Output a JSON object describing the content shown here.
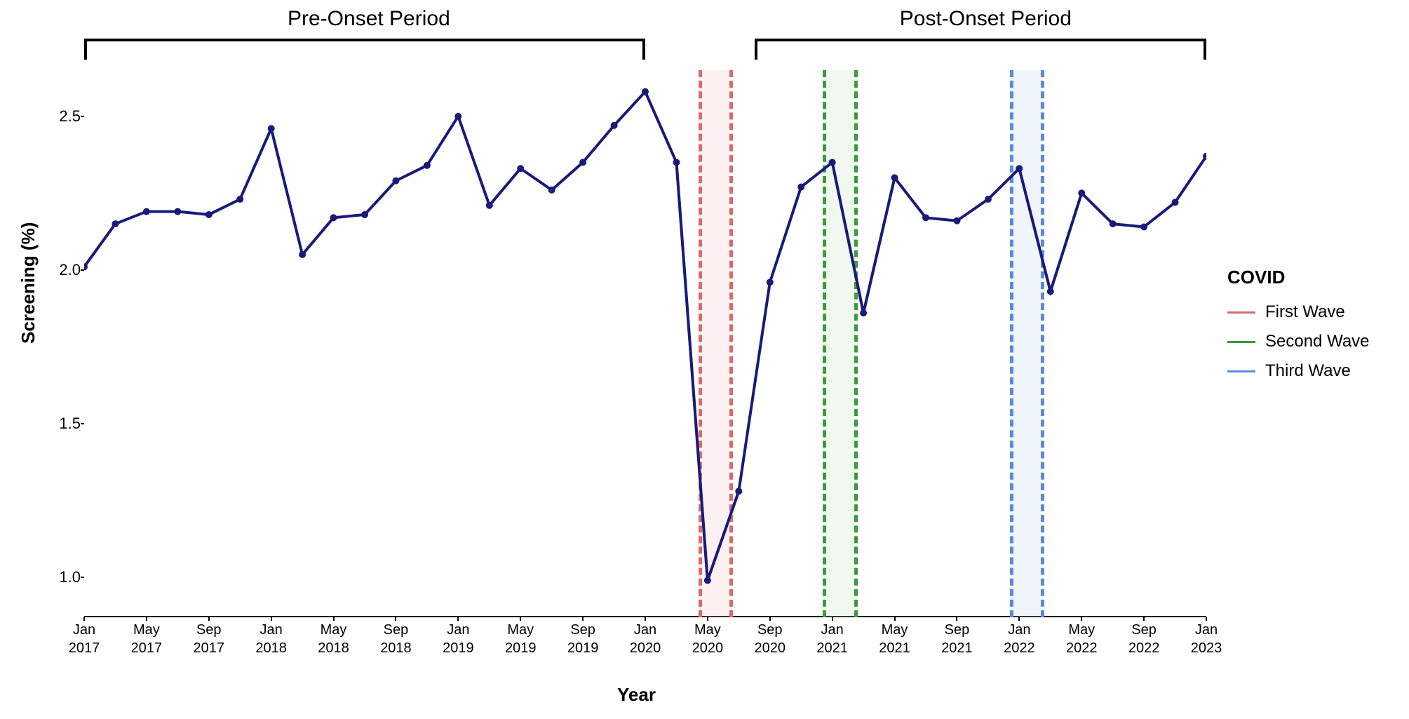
{
  "chart": {
    "type": "line",
    "ylabel": "Screening (%)",
    "xlabel": "Year",
    "ylabel_fontsize": 26,
    "xlabel_fontsize": 26,
    "tick_fontsize": 22,
    "ylim": [
      0.87,
      2.65
    ],
    "yticks": [
      1.0,
      1.5,
      2.0,
      2.5
    ],
    "xticks": [
      {
        "i": 0,
        "line1": "Jan",
        "line2": "2017"
      },
      {
        "i": 2,
        "line1": "May",
        "line2": "2017"
      },
      {
        "i": 4,
        "line1": "Sep",
        "line2": "2017"
      },
      {
        "i": 6,
        "line1": "Jan",
        "line2": "2018"
      },
      {
        "i": 8,
        "line1": "May",
        "line2": "2018"
      },
      {
        "i": 10,
        "line1": "Sep",
        "line2": "2018"
      },
      {
        "i": 12,
        "line1": "Jan",
        "line2": "2019"
      },
      {
        "i": 14,
        "line1": "May",
        "line2": "2019"
      },
      {
        "i": 16,
        "line1": "Sep",
        "line2": "2019"
      },
      {
        "i": 18,
        "line1": "Jan",
        "line2": "2020"
      },
      {
        "i": 20,
        "line1": "May",
        "line2": "2020"
      },
      {
        "i": 22,
        "line1": "Sep",
        "line2": "2020"
      },
      {
        "i": 24,
        "line1": "Jan",
        "line2": "2021"
      },
      {
        "i": 26,
        "line1": "May",
        "line2": "2021"
      },
      {
        "i": 28,
        "line1": "Sep",
        "line2": "2021"
      },
      {
        "i": 30,
        "line1": "Jan",
        "line2": "2022"
      },
      {
        "i": 32,
        "line1": "May",
        "line2": "2022"
      },
      {
        "i": 34,
        "line1": "Sep",
        "line2": "2022"
      },
      {
        "i": 36,
        "line1": "Jan",
        "line2": "2023"
      }
    ],
    "n_points": 37,
    "series": {
      "main": {
        "color": "#1a1a7a",
        "line_width": 4,
        "marker_size": 5,
        "values": [
          2.01,
          2.15,
          2.19,
          2.19,
          2.18,
          2.23,
          2.46,
          2.05,
          2.17,
          2.18,
          2.29,
          2.34,
          2.5,
          2.21,
          2.33,
          2.26,
          2.35,
          2.47,
          2.58,
          2.35,
          0.99,
          1.28,
          1.96,
          2.27,
          2.35,
          1.86,
          2.3,
          2.17,
          2.16,
          2.23,
          2.33,
          1.93,
          2.25,
          2.15,
          2.14,
          2.22,
          2.37
        ]
      },
      "dip_overlay": {
        "color": "#8888b0",
        "line_width": 4,
        "segments": [
          {
            "start_i": 19,
            "end_i": 21,
            "start_v": 2.35,
            "mid_v": 0.99,
            "end_v": 1.28
          },
          {
            "start_i": 24,
            "end_i": 26,
            "start_v": 2.35,
            "mid_v": 1.86,
            "end_v": 2.3
          },
          {
            "start_i": 30,
            "end_i": 32,
            "start_v": 2.33,
            "mid_v": 1.93,
            "end_v": 2.25
          }
        ]
      }
    },
    "waves": [
      {
        "name": "First Wave",
        "start_i": 19.7,
        "end_i": 20.7,
        "color": "#d96a6a",
        "fill": "#f4c2c2"
      },
      {
        "name": "Second Wave",
        "start_i": 23.7,
        "end_i": 24.7,
        "color": "#3a9b3a",
        "fill": "#c2e4c2"
      },
      {
        "name": "Third Wave",
        "start_i": 29.7,
        "end_i": 30.7,
        "color": "#5a8adb",
        "fill": "#c2d4f0"
      }
    ],
    "periods": {
      "pre": {
        "label": "Pre-Onset Period",
        "start_i": 0,
        "end_i": 18
      },
      "post": {
        "label": "Post-Onset Period",
        "start_i": 21.5,
        "end_i": 36
      }
    },
    "legend": {
      "title": "COVID",
      "items": [
        {
          "label": "First Wave",
          "color": "#d96a6a"
        },
        {
          "label": "Second Wave",
          "color": "#3a9b3a"
        },
        {
          "label": "Third Wave",
          "color": "#5a8adb"
        }
      ]
    },
    "background_color": "#ffffff"
  }
}
